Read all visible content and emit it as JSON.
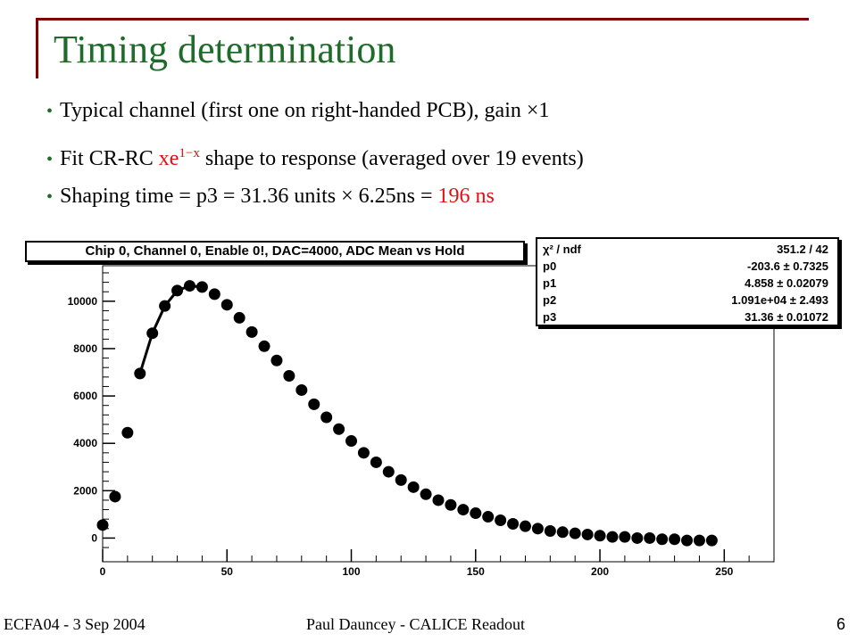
{
  "slide": {
    "title": "Timing determination",
    "bullets": [
      {
        "text": "Typical channel (first one on right-handed PCB), gain ×1"
      },
      {
        "pre": "Fit CR-RC ",
        "formula_base": "xe",
        "formula_sup": "1−x",
        "post": " shape to response (averaged over 19 events)"
      },
      {
        "pre": "Shaping time = p3 = 31.36 units × 6.25ns = ",
        "highlight": "196 ns"
      }
    ]
  },
  "footer": {
    "left": "ECFA04 - 3 Sep 2004",
    "center": "Paul Dauncey - CALICE Readout",
    "page": "6"
  },
  "colors": {
    "title": "#1f6b2a",
    "accent_frame": "#800000",
    "highlight_red": "#e01010",
    "markers": "#000000"
  },
  "stats_box": {
    "rows": [
      {
        "label": "χ² / ndf",
        "value": "351.2 / 42"
      },
      {
        "label": "p0",
        "value": "-203.6 ± 0.7325"
      },
      {
        "label": "p1",
        "value": "4.858 ± 0.02079"
      },
      {
        "label": "p2",
        "value": "1.091e+04 ± 2.493"
      },
      {
        "label": "p3",
        "value": "31.36 ± 0.01072"
      }
    ]
  },
  "chart_data": {
    "type": "scatter",
    "title": "Chip 0, Channel 0, Enable 0!, DAC=4000, ADC Mean vs Hold",
    "xlabel": "",
    "ylabel": "",
    "xlim": [
      0,
      270
    ],
    "ylim": [
      -1000,
      11500
    ],
    "x_ticks": [
      0,
      50,
      100,
      150,
      200,
      250
    ],
    "y_ticks": [
      0,
      2000,
      4000,
      6000,
      8000,
      10000
    ],
    "grid": false,
    "series": [
      {
        "x": [
          0,
          5,
          10,
          15,
          20,
          25,
          30,
          35,
          40,
          45,
          50,
          55,
          60,
          65,
          70,
          75,
          80,
          85,
          90,
          95,
          100,
          105,
          110,
          115,
          120,
          125,
          130,
          135,
          140,
          145,
          150,
          155,
          160,
          165,
          170,
          175,
          180,
          185,
          190,
          195,
          200,
          205,
          210,
          215,
          220,
          225,
          230,
          235,
          240,
          245
        ],
        "y": [
          550,
          1750,
          4450,
          6950,
          8650,
          9800,
          10450,
          10650,
          10600,
          10300,
          9850,
          9300,
          8700,
          8100,
          7500,
          6850,
          6250,
          5650,
          5100,
          4600,
          4100,
          3600,
          3200,
          2800,
          2450,
          2150,
          1850,
          1600,
          1400,
          1200,
          1050,
          900,
          750,
          600,
          500,
          400,
          300,
          250,
          200,
          150,
          100,
          50,
          50,
          0,
          0,
          -50,
          -50,
          -100,
          -100,
          -100
        ]
      }
    ],
    "fit_curve": {
      "x_range": [
        15,
        40
      ],
      "y": [
        6950,
        8650,
        9800,
        10450,
        10650,
        10600
      ]
    }
  }
}
